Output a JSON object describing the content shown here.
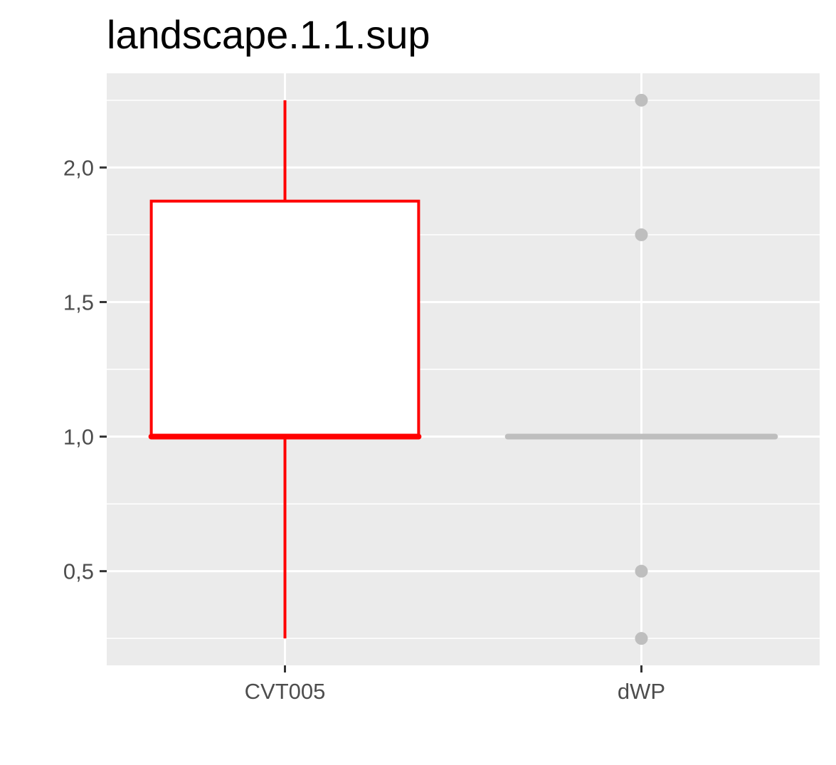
{
  "chart_data": {
    "type": "boxplot",
    "title": "landscape.1.1.sup",
    "xlabel": "",
    "ylabel": "",
    "categories": [
      "CVT005",
      "dWP"
    ],
    "ylim": [
      0.15,
      2.35
    ],
    "y_major_ticks": [
      0.5,
      1.0,
      1.5,
      2.0
    ],
    "y_tick_labels": [
      "0,5",
      "1,0",
      "1,5",
      "2,0"
    ],
    "y_minor_gridlines": [
      0.25,
      0.75,
      1.25,
      1.75,
      2.25
    ],
    "grid": true,
    "legend": "none",
    "colors": {
      "panel_background": "#ebebeb",
      "grid": "#ffffff",
      "box_fill": "#ffffff",
      "cvt005": "#ff0000",
      "dwp": "#bebebe",
      "tick_text": "#4d4d4d",
      "tick_mark": "#333333"
    },
    "boxes": [
      {
        "category": "CVT005",
        "color": "#ff0000",
        "whisker_low": 0.25,
        "q1": 1.0,
        "median": 1.0,
        "q3": 1.875,
        "whisker_high": 2.25,
        "outliers": []
      },
      {
        "category": "dWP",
        "color": "#bebebe",
        "whisker_low": 1.0,
        "q1": 1.0,
        "median": 1.0,
        "q3": 1.0,
        "whisker_high": 1.0,
        "outliers": [
          2.25,
          1.75,
          0.5,
          0.25
        ]
      }
    ]
  }
}
